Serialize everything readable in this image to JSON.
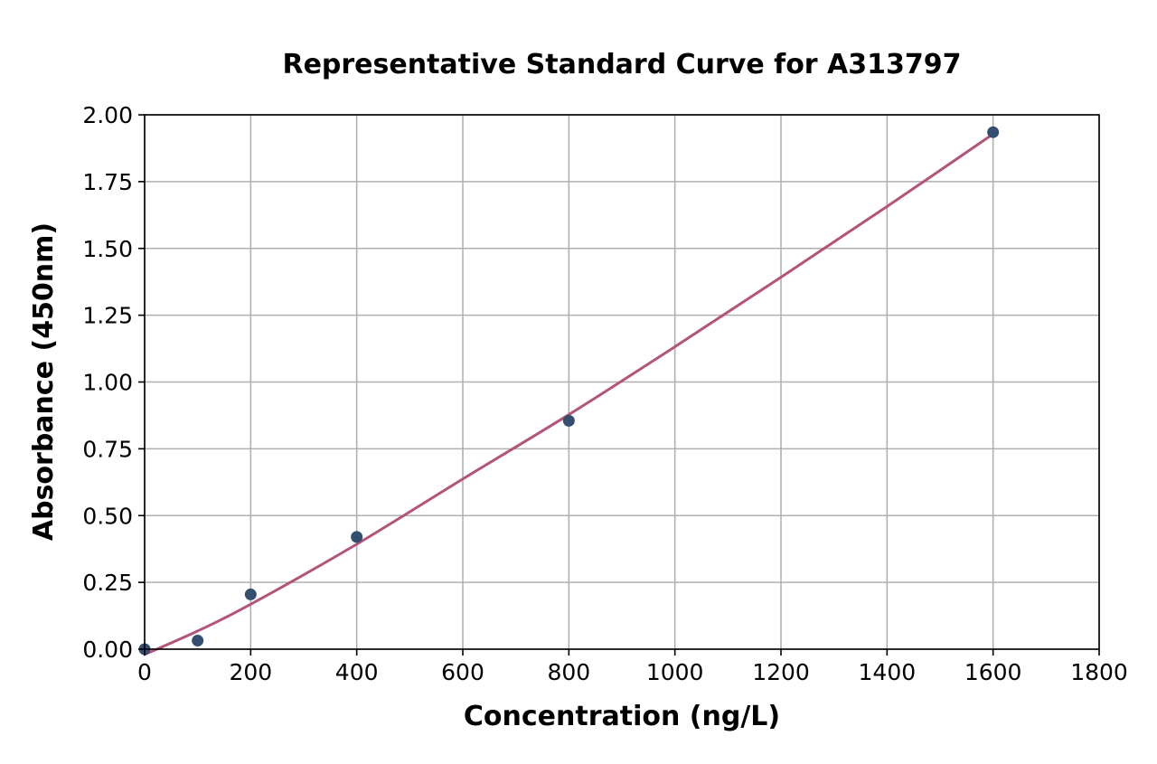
{
  "chart_data": {
    "type": "scatter",
    "title": "Representative Standard Curve for A313797",
    "xlabel": "Concentration (ng/L)",
    "ylabel": "Absorbance (450nm)",
    "xlim": [
      0,
      1800
    ],
    "ylim": [
      0,
      2.0
    ],
    "xticks": [
      0,
      200,
      400,
      600,
      800,
      1000,
      1200,
      1400,
      1600,
      1800
    ],
    "xtick_labels": [
      "0",
      "200",
      "400",
      "600",
      "800",
      "1000",
      "1200",
      "1400",
      "1600",
      "1800"
    ],
    "yticks": [
      0,
      0.25,
      0.5,
      0.75,
      1.0,
      1.25,
      1.5,
      1.75,
      2.0
    ],
    "ytick_labels": [
      "0.00",
      "0.25",
      "0.50",
      "0.75",
      "1.00",
      "1.25",
      "1.50",
      "1.75",
      "2.00"
    ],
    "grid": true,
    "series": [
      {
        "type": "scatter",
        "color": "#344e6f",
        "x": [
          0,
          100,
          200,
          400,
          800,
          1600
        ],
        "y": [
          0.0,
          0.032,
          0.205,
          0.42,
          0.855,
          1.935
        ]
      },
      {
        "type": "line",
        "color": "#b5547a",
        "x": [
          0,
          100,
          200,
          400,
          600,
          800,
          1000,
          1200,
          1400,
          1600
        ],
        "y": [
          -0.02,
          0.068,
          0.168,
          0.393,
          0.637,
          0.878,
          1.132,
          1.392,
          1.657,
          1.928
        ]
      }
    ]
  }
}
